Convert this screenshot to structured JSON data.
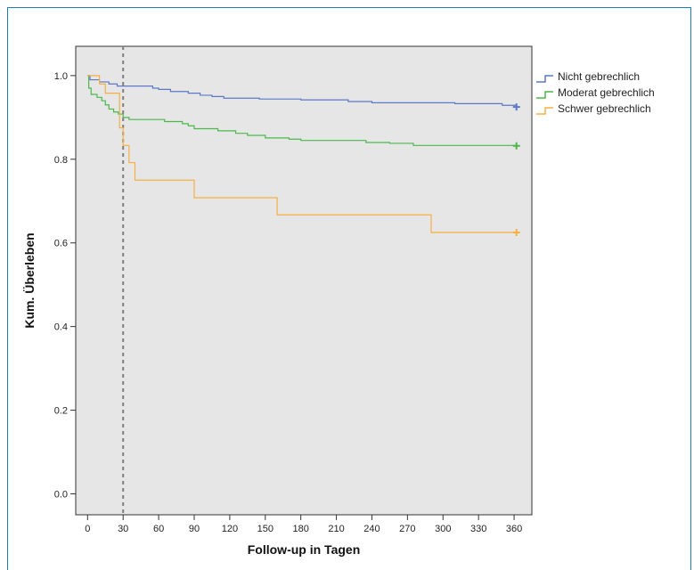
{
  "chart_data": {
    "type": "line",
    "xlabel": "Follow-up in Tagen",
    "ylabel": "Kum. Überleben",
    "xlim": [
      -10,
      375
    ],
    "ylim": [
      -0.05,
      1.07
    ],
    "x_ticks": [
      0,
      30,
      60,
      90,
      120,
      150,
      180,
      210,
      240,
      270,
      300,
      330,
      360
    ],
    "y_ticks": [
      0.0,
      0.2,
      0.4,
      0.6,
      0.8,
      1.0
    ],
    "y_tick_labels": [
      "0.0",
      "0.2",
      "0.4",
      "0.6",
      "0.8",
      "1.0"
    ],
    "background": "#e6e6e6",
    "grid": false,
    "legend_position": "right",
    "reference_line": {
      "x": 30,
      "style": "dashed",
      "color": "#808080"
    },
    "series": [
      {
        "name": "Nicht gebrechlich",
        "color": "#5c78c9",
        "censor_mark": "+",
        "points": [
          [
            0,
            1.0
          ],
          [
            2,
            0.99
          ],
          [
            10,
            0.985
          ],
          [
            18,
            0.98
          ],
          [
            25,
            0.975
          ],
          [
            45,
            0.975
          ],
          [
            55,
            0.97
          ],
          [
            60,
            0.967
          ],
          [
            70,
            0.962
          ],
          [
            85,
            0.958
          ],
          [
            95,
            0.953
          ],
          [
            105,
            0.95
          ],
          [
            115,
            0.946
          ],
          [
            145,
            0.944
          ],
          [
            180,
            0.942
          ],
          [
            220,
            0.938
          ],
          [
            240,
            0.935
          ],
          [
            310,
            0.933
          ],
          [
            350,
            0.929
          ],
          [
            362,
            0.925
          ]
        ]
      },
      {
        "name": "Moderat gebrechlich",
        "color": "#4cb84c",
        "censor_mark": "+",
        "points": [
          [
            0,
            1.0
          ],
          [
            1,
            0.97
          ],
          [
            3,
            0.955
          ],
          [
            8,
            0.948
          ],
          [
            12,
            0.94
          ],
          [
            15,
            0.93
          ],
          [
            18,
            0.92
          ],
          [
            22,
            0.913
          ],
          [
            26,
            0.908
          ],
          [
            30,
            0.9
          ],
          [
            35,
            0.895
          ],
          [
            65,
            0.89
          ],
          [
            80,
            0.885
          ],
          [
            85,
            0.88
          ],
          [
            90,
            0.873
          ],
          [
            110,
            0.868
          ],
          [
            125,
            0.862
          ],
          [
            135,
            0.857
          ],
          [
            150,
            0.851
          ],
          [
            170,
            0.848
          ],
          [
            180,
            0.845
          ],
          [
            235,
            0.84
          ],
          [
            255,
            0.838
          ],
          [
            275,
            0.833
          ],
          [
            362,
            0.832
          ]
        ]
      },
      {
        "name": "Schwer gebrechlich",
        "color": "#f5b042",
        "censor_mark": "+",
        "points": [
          [
            0,
            1.0
          ],
          [
            10,
            0.98
          ],
          [
            15,
            0.958
          ],
          [
            27,
            0.875
          ],
          [
            30,
            0.833
          ],
          [
            35,
            0.792
          ],
          [
            40,
            0.75
          ],
          [
            90,
            0.708
          ],
          [
            160,
            0.667
          ],
          [
            290,
            0.625
          ],
          [
            362,
            0.625
          ]
        ]
      }
    ]
  }
}
